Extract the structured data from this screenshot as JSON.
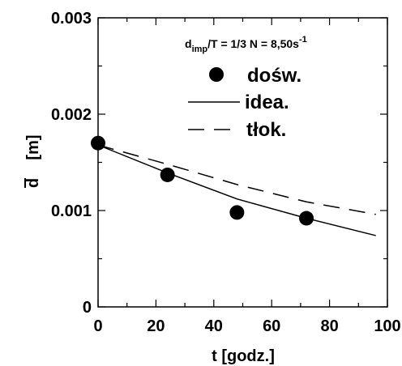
{
  "chart_data": {
    "type": "line",
    "xlabel": "t [godz.]",
    "ylabel_symbol": "d",
    "ylabel_unit": "[m]",
    "xlim": [
      0,
      100
    ],
    "ylim": [
      0,
      0.003
    ],
    "x_ticks": [
      0,
      20,
      40,
      60,
      80,
      100
    ],
    "x_tick_labels": [
      "0",
      "20",
      "40",
      "60",
      "80",
      "100"
    ],
    "y_ticks": [
      0,
      0.001,
      0.002,
      0.003
    ],
    "y_tick_labels": [
      "0",
      "0.001",
      "0.002",
      "0.003"
    ],
    "grid": false,
    "legend_position": "top-right",
    "annotation": {
      "d_sub": "imp",
      "ratio": "/T = 1/3  N = 8,50s",
      "sup": "-1"
    },
    "series": [
      {
        "name": "dośw.",
        "style": "markers",
        "x": [
          0,
          24,
          48,
          72
        ],
        "y": [
          0.0017,
          0.00137,
          0.00098,
          0.00092
        ]
      },
      {
        "name": "idea.",
        "style": "solid",
        "x": [
          0,
          24,
          48,
          72,
          96
        ],
        "y": [
          0.00168,
          0.00139,
          0.00112,
          0.00092,
          0.00074
        ]
      },
      {
        "name": "tłok.",
        "style": "dashed",
        "x": [
          0,
          24,
          48,
          72,
          96
        ],
        "y": [
          0.00168,
          0.00148,
          0.00127,
          0.00109,
          0.00096
        ]
      }
    ]
  }
}
